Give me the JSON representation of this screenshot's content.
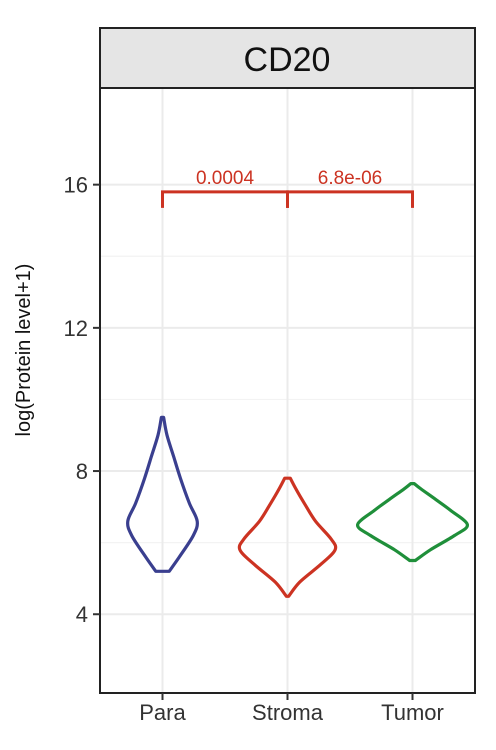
{
  "chart_data": {
    "type": "violin",
    "title": "CD20",
    "ylabel": "log(Protein level+1)",
    "xlabel": "",
    "ylim": [
      1.8,
      18.7
    ],
    "yticks": [
      4,
      8,
      12,
      16
    ],
    "grid": true,
    "categories": [
      "Para",
      "Stroma",
      "Tumor"
    ],
    "series": [
      {
        "name": "Para",
        "color": "#3a3f8f",
        "profile": [
          [
            5.2,
            0.12
          ],
          [
            5.6,
            0.3
          ],
          [
            6.2,
            0.55
          ],
          [
            6.6,
            0.62
          ],
          [
            7.1,
            0.48
          ],
          [
            7.8,
            0.32
          ],
          [
            8.4,
            0.2
          ],
          [
            9.0,
            0.08
          ],
          [
            9.5,
            0.02
          ]
        ]
      },
      {
        "name": "Stroma",
        "color": "#cc3322",
        "profile": [
          [
            4.5,
            0.02
          ],
          [
            4.9,
            0.22
          ],
          [
            5.4,
            0.6
          ],
          [
            5.8,
            0.85
          ],
          [
            6.1,
            0.78
          ],
          [
            6.6,
            0.5
          ],
          [
            7.1,
            0.3
          ],
          [
            7.5,
            0.15
          ],
          [
            7.8,
            0.05
          ]
        ]
      },
      {
        "name": "Tumor",
        "color": "#1f8f3a",
        "profile": [
          [
            5.5,
            0.05
          ],
          [
            5.8,
            0.32
          ],
          [
            6.2,
            0.75
          ],
          [
            6.5,
            0.98
          ],
          [
            6.9,
            0.68
          ],
          [
            7.2,
            0.42
          ],
          [
            7.5,
            0.15
          ],
          [
            7.65,
            0.03
          ]
        ]
      }
    ],
    "comparisons": [
      {
        "from": "Para",
        "to": "Stroma",
        "label": "0.0004"
      },
      {
        "from": "Stroma",
        "to": "Tumor",
        "label": "6.8e-06"
      }
    ],
    "comparison_color": "#cc3322",
    "comparison_y": 15.8
  }
}
